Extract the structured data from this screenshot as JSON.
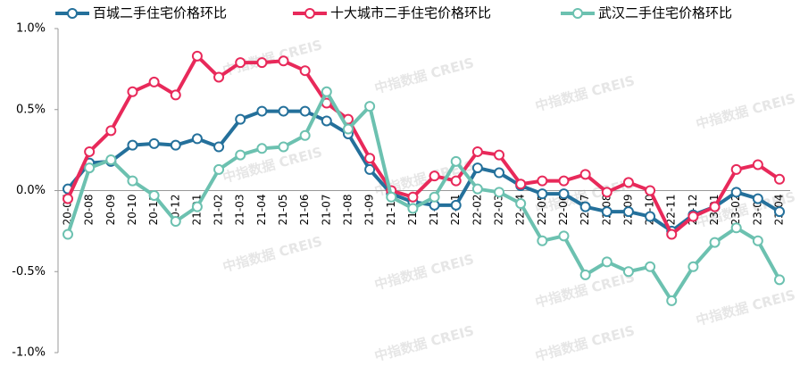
{
  "chart_data": {
    "type": "line",
    "watermark": "中指数据 CREIS",
    "categories": [
      "20-07",
      "20-08",
      "20-09",
      "20-10",
      "20-11",
      "20-12",
      "21-01",
      "21-02",
      "21-03",
      "21-04",
      "21-05",
      "21-06",
      "21-07",
      "21-08",
      "21-09",
      "21-10",
      "21-11",
      "21-12",
      "22-01",
      "22-02",
      "22-03",
      "22-04",
      "22-05",
      "22-06",
      "22-07",
      "22-08",
      "22-09",
      "22-10",
      "22-11",
      "22-12",
      "23-01",
      "23-02",
      "23-03",
      "23-04"
    ],
    "series": [
      {
        "name": "百城二手住宅价格环比",
        "color": "#24709b",
        "values": [
          0.01,
          0.17,
          0.18,
          0.28,
          0.29,
          0.28,
          0.32,
          0.27,
          0.44,
          0.49,
          0.49,
          0.49,
          0.43,
          0.35,
          0.13,
          -0.02,
          -0.07,
          -0.09,
          -0.09,
          0.14,
          0.11,
          0.03,
          -0.02,
          -0.02,
          -0.1,
          -0.13,
          -0.13,
          -0.16,
          -0.25,
          -0.15,
          -0.1,
          -0.01,
          -0.05,
          -0.13
        ]
      },
      {
        "name": "十大城市二手住宅价格环比",
        "color": "#e8295a",
        "values": [
          -0.05,
          0.24,
          0.37,
          0.61,
          0.67,
          0.59,
          0.83,
          0.7,
          0.79,
          0.79,
          0.8,
          0.74,
          0.54,
          0.44,
          0.2,
          0.0,
          -0.04,
          0.09,
          0.06,
          0.24,
          0.22,
          0.04,
          0.06,
          0.06,
          0.1,
          -0.01,
          0.05,
          0.0,
          -0.27,
          -0.16,
          -0.1,
          0.13,
          0.16,
          0.07
        ]
      },
      {
        "name": "武汉二手住宅价格环比",
        "color": "#6cc1b0",
        "values": [
          -0.27,
          0.14,
          0.19,
          0.06,
          -0.03,
          -0.19,
          -0.1,
          0.13,
          0.22,
          0.26,
          0.27,
          0.34,
          0.61,
          0.38,
          0.52,
          -0.04,
          -0.11,
          -0.04,
          0.18,
          0.01,
          -0.01,
          -0.08,
          -0.31,
          -0.28,
          -0.52,
          -0.44,
          -0.5,
          -0.47,
          -0.68,
          -0.47,
          -0.32,
          -0.23,
          -0.31,
          -0.55
        ]
      }
    ],
    "ylim": [
      -1,
      1
    ],
    "yticks": [
      {
        "value": -1,
        "label": "-1.0%"
      },
      {
        "value": -0.5,
        "label": "-0.5%"
      },
      {
        "value": 0,
        "label": "0.0%"
      },
      {
        "value": 0.5,
        "label": "0.5%"
      },
      {
        "value": 1,
        "label": "1.0%"
      }
    ]
  }
}
